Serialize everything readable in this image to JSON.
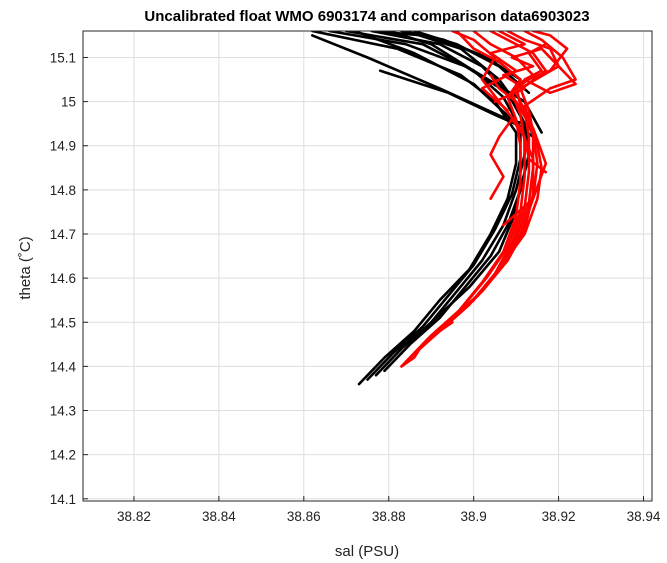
{
  "chart_data": {
    "type": "line",
    "title": "Uncalibrated float WMO 6903174 and comparison data6903023",
    "xlabel": "sal (PSU)",
    "ylabel": "theta (˚C)",
    "xlim": [
      38.808,
      38.942
    ],
    "ylim": [
      14.095,
      15.16
    ],
    "xticks": [
      "38.82",
      "38.84",
      "38.86",
      "38.88",
      "38.9",
      "38.92",
      "38.94"
    ],
    "xtick_values": [
      38.82,
      38.84,
      38.86,
      38.88,
      38.9,
      38.92,
      38.94
    ],
    "yticks": [
      "14.1",
      "14.2",
      "14.3",
      "14.4",
      "14.5",
      "14.6",
      "14.7",
      "14.8",
      "14.9",
      "15",
      "15.1"
    ],
    "ytick_values": [
      14.1,
      14.2,
      14.3,
      14.4,
      14.5,
      14.6,
      14.7,
      14.8,
      14.9,
      15.0,
      15.1
    ],
    "grid": true,
    "legend": false,
    "series": [
      {
        "color": "#000000",
        "profiles": [
          {
            "x": [
              38.873,
              38.879,
              38.886,
              38.892,
              38.899,
              38.904,
              38.908,
              38.91,
              38.91,
              38.905,
              38.897,
              38.882,
              38.862
            ],
            "y": [
              14.36,
              14.42,
              14.48,
              14.55,
              14.62,
              14.7,
              14.78,
              14.86,
              14.93,
              15.0,
              15.06,
              15.12,
              15.16
            ]
          },
          {
            "x": [
              38.875,
              38.881,
              38.888,
              38.894,
              38.9,
              38.905,
              38.909,
              38.911,
              38.911,
              38.907,
              38.9,
              38.888,
              38.87
            ],
            "y": [
              14.37,
              14.43,
              14.49,
              14.56,
              14.63,
              14.71,
              14.79,
              14.87,
              14.94,
              15.01,
              15.07,
              15.13,
              15.16
            ]
          },
          {
            "x": [
              38.877,
              38.883,
              38.89,
              38.896,
              38.902,
              38.907,
              38.91,
              38.912,
              38.912,
              38.909,
              38.902,
              38.892,
              38.876
            ],
            "y": [
              14.38,
              14.44,
              14.5,
              14.57,
              14.64,
              14.72,
              14.8,
              14.88,
              14.95,
              15.01,
              15.08,
              15.13,
              15.16
            ]
          },
          {
            "x": [
              38.879,
              38.885,
              38.892,
              38.898,
              38.904,
              38.908,
              38.911,
              38.913,
              38.912,
              38.908,
              38.898,
              38.884,
              38.866
            ],
            "y": [
              14.39,
              14.45,
              14.51,
              14.58,
              14.65,
              14.72,
              14.8,
              14.88,
              14.95,
              15.02,
              15.08,
              15.13,
              15.16
            ]
          },
          {
            "x": [
              38.89,
              38.899,
              38.906,
              38.909,
              38.911,
              38.913,
              38.912,
              38.905,
              38.894,
              38.878
            ],
            "y": [
              14.5,
              14.58,
              14.66,
              14.73,
              14.8,
              14.88,
              14.94,
              14.97,
              15.02,
              15.07
            ]
          },
          {
            "x": [
              38.912,
              38.908,
              38.892,
              38.875,
              38.862
            ],
            "y": [
              14.95,
              14.96,
              15.03,
              15.1,
              15.15
            ]
          },
          {
            "x": [
              38.914,
              38.91,
              38.9,
              38.886,
              38.872
            ],
            "y": [
              14.92,
              14.95,
              15.04,
              15.11,
              15.16
            ]
          },
          {
            "x": [
              38.915,
              38.912,
              38.906,
              38.897,
              38.884
            ],
            "y": [
              14.9,
              14.97,
              15.05,
              15.12,
              15.16
            ]
          },
          {
            "x": [
              38.916,
              38.912,
              38.9,
              38.89,
              38.88
            ],
            "y": [
              14.93,
              15.0,
              15.07,
              15.13,
              15.16
            ]
          },
          {
            "x": [
              38.913,
              38.906,
              38.896,
              38.886
            ],
            "y": [
              15.02,
              15.08,
              15.13,
              15.16
            ]
          },
          {
            "x": [
              38.911,
              38.903,
              38.893,
              38.883
            ],
            "y": [
              15.05,
              15.1,
              15.14,
              15.16
            ]
          },
          {
            "x": [
              38.906,
              38.895,
              38.888,
              38.876
            ],
            "y": [
              15.09,
              15.13,
              15.15,
              15.16
            ]
          }
        ]
      },
      {
        "color": "#ff0000",
        "profiles": [
          {
            "x": [
              38.883,
              38.889,
              38.896,
              38.902,
              38.907,
              38.91,
              38.911,
              38.911,
              38.91,
              38.908,
              38.911,
              38.906,
              38.9,
              38.896
            ],
            "y": [
              14.4,
              14.46,
              14.52,
              14.59,
              14.66,
              14.74,
              14.82,
              14.9,
              14.96,
              15.01,
              15.05,
              15.09,
              15.12,
              15.16
            ]
          },
          {
            "x": [
              38.884,
              38.89,
              38.897,
              38.903,
              38.908,
              38.911,
              38.912,
              38.912,
              38.911,
              38.909,
              38.914,
              38.91,
              38.904,
              38.9
            ],
            "y": [
              14.41,
              14.47,
              14.53,
              14.6,
              14.67,
              14.75,
              14.83,
              14.91,
              14.97,
              15.02,
              15.06,
              15.1,
              15.13,
              15.16
            ]
          },
          {
            "x": [
              38.885,
              38.892,
              38.899,
              38.905,
              38.909,
              38.912,
              38.913,
              38.913,
              38.912,
              38.91,
              38.917,
              38.914,
              38.908,
              38.904
            ],
            "y": [
              14.42,
              14.48,
              14.54,
              14.61,
              14.68,
              14.76,
              14.84,
              14.92,
              14.98,
              15.02,
              15.07,
              15.11,
              15.14,
              15.16
            ]
          },
          {
            "x": [
              38.886,
              38.893,
              38.9,
              38.906,
              38.91,
              38.913,
              38.914,
              38.914,
              38.913,
              38.911,
              38.92,
              38.918,
              38.912,
              38.908
            ],
            "y": [
              14.43,
              14.49,
              14.55,
              14.62,
              14.69,
              14.77,
              14.85,
              14.93,
              14.98,
              15.03,
              15.08,
              15.12,
              15.14,
              15.16
            ]
          },
          {
            "x": [
              38.887,
              38.894,
              38.901,
              38.907,
              38.911,
              38.914,
              38.915,
              38.914,
              38.912,
              38.918,
              38.924,
              38.921,
              38.916,
              38.912
            ],
            "y": [
              14.44,
              14.5,
              14.56,
              14.63,
              14.7,
              14.78,
              14.86,
              14.93,
              14.99,
              15.03,
              15.05,
              15.1,
              15.14,
              15.16
            ]
          },
          {
            "x": [
              38.888,
              38.895,
              38.902,
              38.908,
              38.912,
              38.914,
              38.914,
              38.911,
              38.906,
              38.902,
              38.905,
              38.9,
              38.895
            ],
            "y": [
              14.45,
              14.51,
              14.57,
              14.64,
              14.71,
              14.79,
              14.87,
              14.94,
              15.0,
              15.05,
              15.1,
              15.14,
              15.16
            ]
          },
          {
            "x": [
              38.906,
              38.912,
              38.915,
              38.916,
              38.915,
              38.913,
              38.91,
              38.906,
              38.904
            ],
            "y": [
              14.62,
              14.7,
              14.78,
              14.85,
              14.9,
              14.95,
              15.0,
              15.03,
              15.06
            ]
          },
          {
            "x": [
              38.907,
              38.914,
              38.917,
              38.914,
              38.911,
              38.91,
              38.918,
              38.922,
              38.918,
              38.914
            ],
            "y": [
              14.72,
              14.78,
              14.86,
              14.94,
              14.99,
              15.04,
              15.07,
              15.12,
              15.15,
              15.16
            ]
          },
          {
            "x": [
              38.908,
              38.902,
              38.91,
              38.904,
              38.912,
              38.906
            ],
            "y": [
              14.98,
              15.03,
              15.07,
              15.11,
              15.13,
              15.16
            ]
          },
          {
            "x": [
              38.905,
              38.912,
              38.907,
              38.914,
              38.909,
              38.916,
              38.92,
              38.924,
              38.918,
              38.912,
              38.916,
              38.913,
              38.917
            ],
            "y": [
              15.0,
              15.03,
              15.06,
              15.08,
              15.1,
              15.12,
              15.08,
              15.04,
              15.02,
              15.05,
              15.07,
              15.11,
              15.13
            ]
          },
          {
            "x": [
              38.904,
              38.907,
              38.904,
              38.906,
              38.909,
              38.912,
              38.913,
              38.917
            ],
            "y": [
              14.78,
              14.83,
              14.88,
              14.92,
              14.96,
              14.92,
              14.87,
              14.84
            ]
          },
          {
            "x": [
              38.883,
              38.886,
              38.888,
              38.892,
              38.895
            ],
            "y": [
              14.4,
              14.42,
              14.45,
              14.48,
              14.5
            ]
          }
        ]
      }
    ]
  }
}
